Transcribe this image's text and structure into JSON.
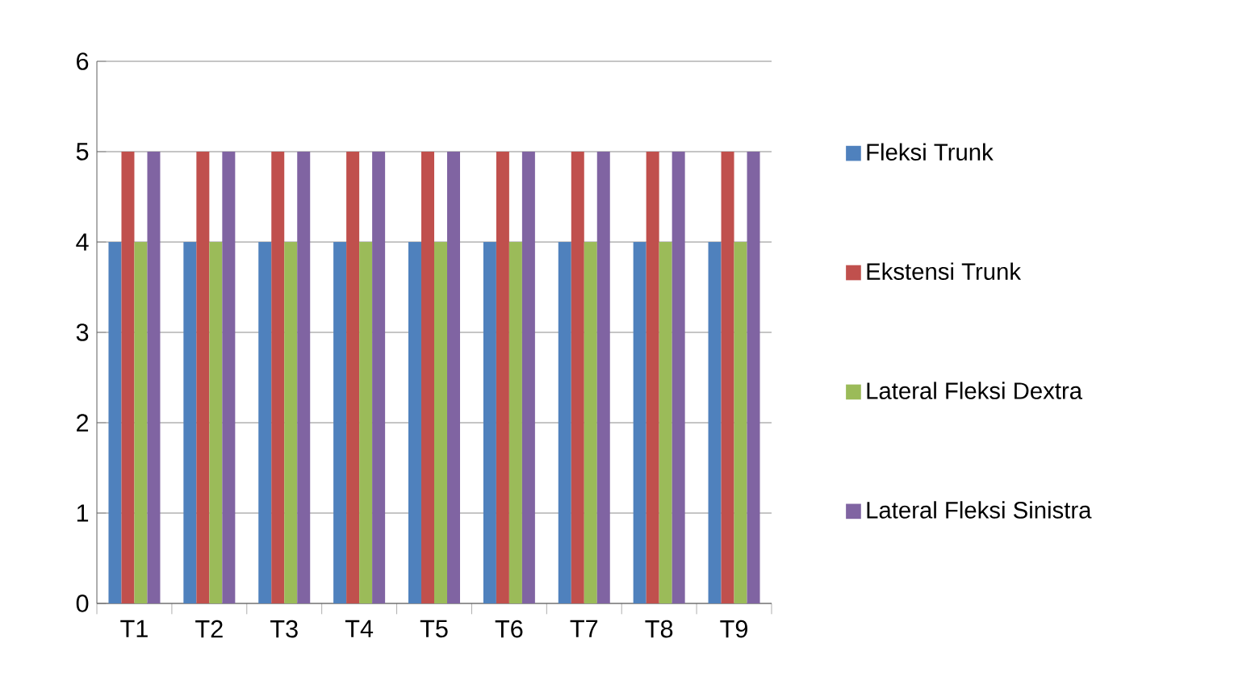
{
  "chart_data": {
    "type": "bar",
    "categories": [
      "T1",
      "T2",
      "T3",
      "T4",
      "T5",
      "T6",
      "T7",
      "T8",
      "T9"
    ],
    "series": [
      {
        "name": "Fleksi Trunk",
        "color": "#4f81bd",
        "values": [
          4,
          4,
          4,
          4,
          4,
          4,
          4,
          4,
          4
        ]
      },
      {
        "name": "Ekstensi Trunk",
        "color": "#c0504d",
        "values": [
          5,
          5,
          5,
          5,
          5,
          5,
          5,
          5,
          5
        ]
      },
      {
        "name": "Lateral Fleksi Dextra",
        "color": "#9bbb59",
        "values": [
          4,
          4,
          4,
          4,
          4,
          4,
          4,
          4,
          4
        ]
      },
      {
        "name": "Lateral Fleksi Sinistra",
        "color": "#8064a2",
        "values": [
          5,
          5,
          5,
          5,
          5,
          5,
          5,
          5,
          5
        ]
      }
    ],
    "ylim": [
      0,
      6
    ],
    "yticks": [
      0,
      1,
      2,
      3,
      4,
      5,
      6
    ],
    "grid": "y",
    "legend": "right"
  }
}
